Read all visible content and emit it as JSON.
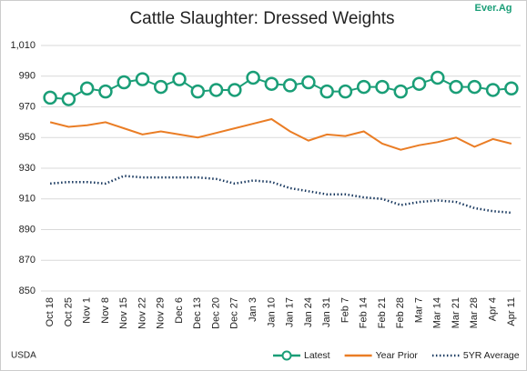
{
  "chart_data": {
    "type": "line",
    "title": "Cattle Slaughter: Dressed Weights",
    "source": "USDA",
    "logo": "Ever.Ag",
    "categories": [
      "Oct 18",
      "Oct 25",
      "Nov 1",
      "Nov 8",
      "Nov 15",
      "Nov 22",
      "Nov 29",
      "Dec 6",
      "Dec 13",
      "Dec 20",
      "Dec 27",
      "Jan 3",
      "Jan 10",
      "Jan 17",
      "Jan 24",
      "Jan 31",
      "Feb 7",
      "Feb 14",
      "Feb 21",
      "Feb 28",
      "Mar 7",
      "Mar 14",
      "Mar 21",
      "Mar 28",
      "Apr 4",
      "Apr 11"
    ],
    "series": [
      {
        "name": "Latest",
        "color": "#1a9e77",
        "style": "marker",
        "values": [
          976,
          975,
          982,
          980,
          986,
          988,
          983,
          988,
          980,
          981,
          981,
          989,
          985,
          984,
          986,
          980,
          980,
          983,
          983,
          980,
          985,
          989,
          983,
          983,
          981,
          982
        ]
      },
      {
        "name": "Year Prior",
        "color": "#ea7d25",
        "style": "solid",
        "values": [
          960,
          957,
          958,
          960,
          956,
          952,
          954,
          952,
          950,
          953,
          956,
          959,
          962,
          954,
          948,
          952,
          951,
          954,
          946,
          942,
          945,
          947,
          950,
          944,
          949,
          946
        ]
      },
      {
        "name": "5YR Average",
        "color": "#17375e",
        "style": "dotted",
        "values": [
          920,
          921,
          921,
          920,
          925,
          924,
          924,
          924,
          924,
          923,
          920,
          922,
          921,
          917,
          915,
          913,
          913,
          911,
          910,
          906,
          908,
          909,
          908,
          904,
          902,
          901
        ]
      }
    ],
    "ylim": [
      850,
      1010
    ],
    "yticks": [
      850,
      870,
      890,
      910,
      930,
      950,
      970,
      990,
      {
        "value": 1010,
        "label": "1,010"
      }
    ],
    "grid": true
  }
}
